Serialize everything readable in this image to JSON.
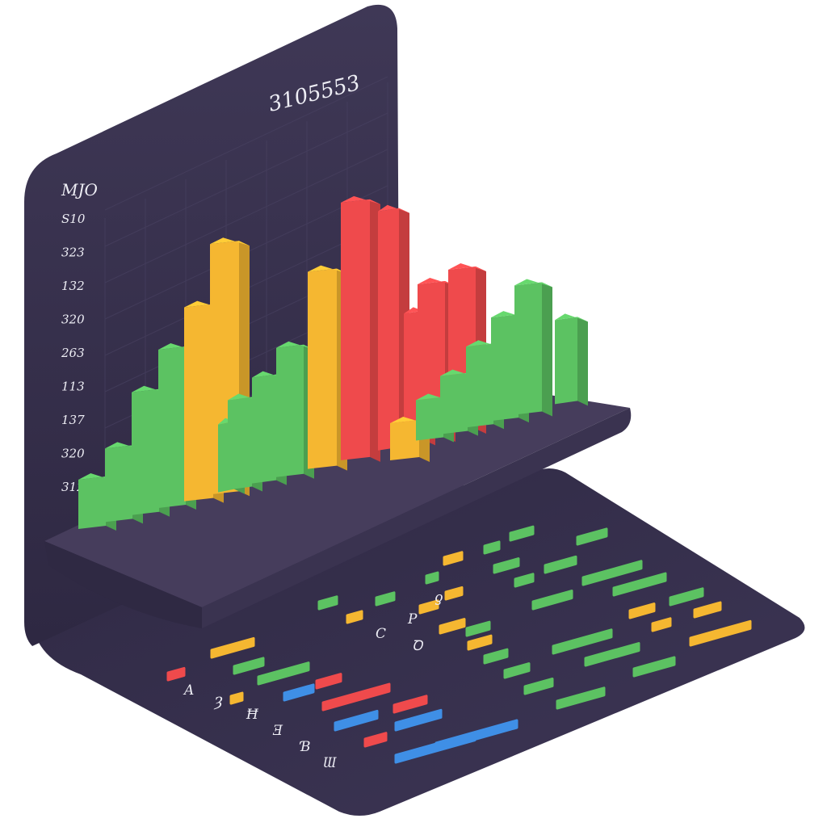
{
  "panel": {
    "title_number": "3105553",
    "axis_header": "MJO",
    "axis_labels": [
      "S10",
      "323",
      "132",
      "320",
      "263",
      "113",
      "137",
      "320",
      "312"
    ]
  },
  "colors": {
    "panel": "#3a3350",
    "floor": "#3b3452",
    "shelf": "#4a4160",
    "green": "#5cc262",
    "yellow": "#f5b731",
    "red": "#ef4a4c",
    "blue": "#3f8fe6"
  },
  "bars": [
    {
      "color": "green",
      "value": 67
    },
    {
      "color": "green",
      "value": 97
    },
    {
      "color": "green",
      "value": 158
    },
    {
      "color": "green",
      "value": 202
    },
    {
      "color": "yellow",
      "value": 246
    },
    {
      "color": "yellow",
      "value": 316
    },
    {
      "color": "green",
      "value": 90
    },
    {
      "color": "green",
      "value": 117
    },
    {
      "color": "green",
      "value": 137
    },
    {
      "color": "green",
      "value": 166
    },
    {
      "color": "yellow",
      "value": 250
    },
    {
      "color": "red",
      "value": 325
    },
    {
      "color": "red",
      "value": 302
    },
    {
      "color": "red",
      "value": 167
    },
    {
      "color": "red",
      "value": 199
    },
    {
      "color": "red",
      "value": 207
    },
    {
      "color": "yellow",
      "value": 52
    },
    {
      "color": "green",
      "value": 56
    },
    {
      "color": "green",
      "value": 78
    },
    {
      "color": "green",
      "value": 106
    },
    {
      "color": "green",
      "value": 134
    },
    {
      "color": "green",
      "value": 166
    },
    {
      "color": "green",
      "value": 110
    }
  ],
  "floor_labels": [
    "C",
    "P",
    "A",
    "Ȝ",
    "Ħ",
    "Ǝ",
    "Ɓ",
    "Ɯ",
    "Ꝺ",
    "ƍ"
  ]
}
